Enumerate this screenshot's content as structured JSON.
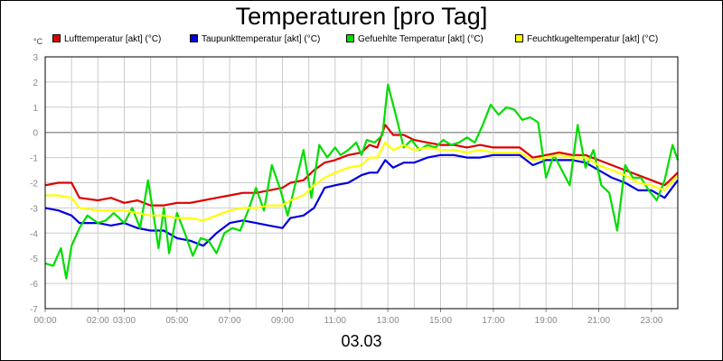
{
  "chart_data": {
    "type": "line",
    "title": "Temperaturen [pro Tag]",
    "ylabel": "°C",
    "date": "03.03",
    "ylim": [
      -7,
      3
    ],
    "y_ticks": [
      3,
      2,
      1,
      0,
      -1,
      -2,
      -3,
      -4,
      -5,
      -6,
      -7
    ],
    "xlim_hours": [
      0,
      24
    ],
    "x_ticks": [
      {
        "h": 0,
        "label": "00:00"
      },
      {
        "h": 2,
        "label": "02:00"
      },
      {
        "h": 3,
        "label": "03:00"
      },
      {
        "h": 5,
        "label": "05:00"
      },
      {
        "h": 7,
        "label": "07:00"
      },
      {
        "h": 9,
        "label": "09:00"
      },
      {
        "h": 11,
        "label": "11:00"
      },
      {
        "h": 13,
        "label": "13:00"
      },
      {
        "h": 15,
        "label": "15:00"
      },
      {
        "h": 17,
        "label": "17:00"
      },
      {
        "h": 19,
        "label": "19:00"
      },
      {
        "h": 21,
        "label": "21:00"
      },
      {
        "h": 23,
        "label": "23:00"
      }
    ],
    "grid": true,
    "legend_position": "top",
    "series": [
      {
        "name": "Lufttemperatur [akt] (°C)",
        "color": "#dd0000",
        "x": [
          0,
          0.5,
          1,
          1.3,
          2,
          2.5,
          3,
          3.5,
          4,
          4.5,
          5,
          5.5,
          6,
          6.5,
          7,
          7.5,
          8,
          8.5,
          9,
          9.3,
          9.8,
          10.2,
          10.6,
          11,
          11.5,
          12,
          12.3,
          12.6,
          12.9,
          13.2,
          13.6,
          14,
          14.5,
          15,
          15.5,
          16,
          16.5,
          17,
          17.5,
          18,
          18.5,
          19,
          19.5,
          20,
          20.5,
          21,
          21.5,
          22,
          22.5,
          23,
          23.5,
          24
        ],
        "values": [
          -2.1,
          -2.0,
          -2.0,
          -2.6,
          -2.7,
          -2.6,
          -2.8,
          -2.7,
          -2.9,
          -2.9,
          -2.8,
          -2.8,
          -2.7,
          -2.6,
          -2.5,
          -2.4,
          -2.4,
          -2.3,
          -2.2,
          -2.0,
          -1.9,
          -1.5,
          -1.2,
          -1.1,
          -0.9,
          -0.8,
          -0.5,
          -0.6,
          0.3,
          -0.1,
          -0.1,
          -0.3,
          -0.4,
          -0.5,
          -0.5,
          -0.6,
          -0.5,
          -0.6,
          -0.6,
          -0.6,
          -1.0,
          -0.9,
          -0.8,
          -0.9,
          -0.9,
          -1.1,
          -1.3,
          -1.5,
          -1.7,
          -1.9,
          -2.1,
          -1.6
        ]
      },
      {
        "name": "Taupunkttemperatur [akt] (°C)",
        "color": "#0000dd",
        "x": [
          0,
          0.5,
          1,
          1.3,
          2,
          2.5,
          3,
          3.5,
          4,
          4.5,
          5,
          5.5,
          6,
          6.5,
          7,
          7.5,
          8,
          8.5,
          9,
          9.3,
          9.8,
          10.2,
          10.6,
          11,
          11.5,
          12,
          12.3,
          12.6,
          12.9,
          13.2,
          13.6,
          14,
          14.5,
          15,
          15.5,
          16,
          16.5,
          17,
          17.5,
          18,
          18.5,
          19,
          19.5,
          20,
          20.5,
          21,
          21.5,
          22,
          22.5,
          23,
          23.5,
          24
        ],
        "values": [
          -3.0,
          -3.1,
          -3.3,
          -3.6,
          -3.6,
          -3.7,
          -3.6,
          -3.8,
          -3.9,
          -3.9,
          -4.2,
          -4.3,
          -4.5,
          -4.0,
          -3.6,
          -3.5,
          -3.6,
          -3.7,
          -3.8,
          -3.4,
          -3.3,
          -3.0,
          -2.2,
          -2.1,
          -2.0,
          -1.7,
          -1.6,
          -1.6,
          -1.1,
          -1.4,
          -1.2,
          -1.2,
          -1.0,
          -0.9,
          -0.9,
          -1.0,
          -1.0,
          -0.9,
          -0.9,
          -0.9,
          -1.3,
          -1.1,
          -1.1,
          -1.1,
          -1.2,
          -1.5,
          -1.8,
          -2.0,
          -2.3,
          -2.3,
          -2.6,
          -1.9
        ]
      },
      {
        "name": "Gefuehlte Temperatur [akt] (°C)",
        "color": "#00dd00",
        "x": [
          0,
          0.3,
          0.6,
          0.8,
          1,
          1.3,
          1.6,
          2,
          2.3,
          2.6,
          3,
          3.3,
          3.6,
          3.9,
          4.1,
          4.3,
          4.5,
          4.7,
          5,
          5.3,
          5.6,
          5.9,
          6.2,
          6.5,
          6.8,
          7.1,
          7.4,
          7.7,
          8,
          8.3,
          8.6,
          8.9,
          9.2,
          9.5,
          9.8,
          10.1,
          10.4,
          10.7,
          11,
          11.2,
          11.5,
          11.8,
          12,
          12.2,
          12.5,
          12.8,
          13,
          13.3,
          13.6,
          13.9,
          14.2,
          14.5,
          14.8,
          15.1,
          15.4,
          15.7,
          16,
          16.3,
          16.6,
          16.9,
          17.2,
          17.5,
          17.8,
          18.1,
          18.4,
          18.7,
          19,
          19.3,
          19.6,
          19.9,
          20.2,
          20.5,
          20.8,
          21.1,
          21.4,
          21.7,
          22,
          22.3,
          22.6,
          22.9,
          23.2,
          23.5,
          23.8,
          24
        ],
        "values": [
          -5.2,
          -5.3,
          -4.6,
          -5.8,
          -4.5,
          -3.8,
          -3.3,
          -3.6,
          -3.5,
          -3.2,
          -3.6,
          -3.0,
          -3.8,
          -1.9,
          -3.2,
          -4.6,
          -3.0,
          -4.8,
          -3.2,
          -4.0,
          -4.9,
          -4.2,
          -4.3,
          -4.8,
          -4.0,
          -3.8,
          -3.9,
          -3.1,
          -2.2,
          -3.1,
          -1.3,
          -2.2,
          -3.3,
          -2.0,
          -0.7,
          -2.6,
          -0.5,
          -1.0,
          -0.6,
          -0.9,
          -0.7,
          -0.4,
          -0.9,
          -0.3,
          -0.4,
          -0.1,
          1.9,
          0.7,
          -0.6,
          -0.3,
          -0.7,
          -0.5,
          -0.6,
          -0.3,
          -0.5,
          -0.4,
          -0.2,
          -0.4,
          0.3,
          1.1,
          0.7,
          1.0,
          0.9,
          0.5,
          0.6,
          0.4,
          -1.8,
          -0.9,
          -1.5,
          -2.1,
          0.3,
          -1.4,
          -0.7,
          -2.1,
          -2.4,
          -3.9,
          -1.3,
          -1.8,
          -1.8,
          -2.3,
          -2.7,
          -1.9,
          -0.5,
          -1.1
        ]
      },
      {
        "name": "Feuchtkugeltemperatur [akt] (°C)",
        "color": "#ffff00",
        "x": [
          0,
          0.5,
          1,
          1.3,
          2,
          2.5,
          3,
          3.5,
          4,
          4.5,
          5,
          5.5,
          6,
          6.5,
          7,
          7.5,
          8,
          8.5,
          9,
          9.3,
          9.8,
          10.2,
          10.6,
          11,
          11.5,
          12,
          12.3,
          12.6,
          12.9,
          13.2,
          13.6,
          14,
          14.5,
          15,
          15.5,
          16,
          16.5,
          17,
          17.5,
          18,
          18.5,
          19,
          19.5,
          20,
          20.5,
          21,
          21.5,
          22,
          22.5,
          23,
          23.5,
          24
        ],
        "values": [
          -2.5,
          -2.5,
          -2.6,
          -3.0,
          -3.1,
          -3.1,
          -3.1,
          -3.2,
          -3.3,
          -3.3,
          -3.4,
          -3.4,
          -3.5,
          -3.3,
          -3.1,
          -3.0,
          -3.0,
          -2.9,
          -2.9,
          -2.7,
          -2.5,
          -2.1,
          -1.8,
          -1.6,
          -1.4,
          -1.3,
          -1.0,
          -1.0,
          -0.4,
          -0.7,
          -0.5,
          -0.7,
          -0.6,
          -0.7,
          -0.7,
          -0.8,
          -0.7,
          -0.8,
          -0.8,
          -0.8,
          -1.1,
          -1.0,
          -0.9,
          -1.0,
          -1.0,
          -1.3,
          -1.5,
          -1.7,
          -2.0,
          -2.1,
          -2.3,
          -1.7
        ]
      }
    ]
  }
}
